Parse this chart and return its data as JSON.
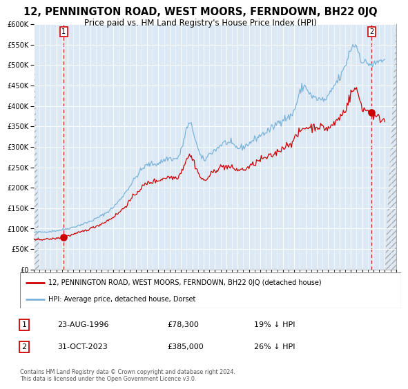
{
  "title": "12, PENNINGTON ROAD, WEST MOORS, FERNDOWN, BH22 0JQ",
  "subtitle": "Price paid vs. HM Land Registry's House Price Index (HPI)",
  "outer_bg_color": "#e8e8e8",
  "plot_bg_color": "#dce9f5",
  "grid_color": "#ffffff",
  "hpi_color": "#7ab3d9",
  "price_color": "#cc0000",
  "sale1_date_num": 1996.64,
  "sale1_price": 78300,
  "sale2_date_num": 2023.83,
  "sale2_price": 385000,
  "ylim": [
    0,
    600000
  ],
  "xlim": [
    1994.0,
    2026.0
  ],
  "yticks": [
    0,
    50000,
    100000,
    150000,
    200000,
    250000,
    300000,
    350000,
    400000,
    450000,
    500000,
    550000,
    600000
  ],
  "legend_label_red": "12, PENNINGTON ROAD, WEST MOORS, FERNDOWN, BH22 0JQ (detached house)",
  "legend_label_blue": "HPI: Average price, detached house, Dorset",
  "annotation1_label": "1",
  "annotation1_date": "23-AUG-1996",
  "annotation1_price": "£78,300",
  "annotation1_hpi": "19% ↓ HPI",
  "annotation2_label": "2",
  "annotation2_date": "31-OCT-2023",
  "annotation2_price": "£385,000",
  "annotation2_hpi": "26% ↓ HPI",
  "footer": "Contains HM Land Registry data © Crown copyright and database right 2024.\nThis data is licensed under the Open Government Licence v3.0.",
  "hpi_anchors_t": [
    1994.0,
    1995.0,
    1996.0,
    1997.0,
    1998.0,
    1999.0,
    2000.0,
    2001.0,
    2002.0,
    2003.0,
    2004.0,
    2005.0,
    2006.0,
    2007.0,
    2007.7,
    2008.5,
    2009.0,
    2009.5,
    2010.0,
    2010.8,
    2011.5,
    2012.0,
    2013.0,
    2014.0,
    2015.0,
    2016.0,
    2017.0,
    2017.8,
    2018.5,
    2019.0,
    2020.0,
    2020.5,
    2021.0,
    2021.5,
    2022.0,
    2022.5,
    2023.0,
    2023.5,
    2024.0,
    2024.5,
    2025.0
  ],
  "hpi_anchors_p": [
    91000,
    92000,
    95000,
    100000,
    108000,
    118000,
    132000,
    152000,
    185000,
    225000,
    255000,
    260000,
    272000,
    290000,
    355000,
    295000,
    268000,
    282000,
    292000,
    310000,
    305000,
    298000,
    308000,
    328000,
    345000,
    368000,
    390000,
    448000,
    425000,
    418000,
    422000,
    448000,
    468000,
    498000,
    540000,
    545000,
    510000,
    505000,
    500000,
    510000,
    505000
  ],
  "red_anchors_t": [
    1994.0,
    1995.0,
    1996.0,
    1997.0,
    1998.0,
    1999.0,
    2000.0,
    2001.0,
    2002.0,
    2003.0,
    2004.0,
    2005.0,
    2006.0,
    2007.0,
    2007.7,
    2008.5,
    2009.0,
    2009.5,
    2010.0,
    2010.8,
    2011.5,
    2012.0,
    2013.0,
    2014.0,
    2015.0,
    2016.0,
    2017.0,
    2017.8,
    2018.5,
    2019.0,
    2020.0,
    2020.5,
    2021.0,
    2021.5,
    2022.0,
    2022.5,
    2023.0,
    2023.5,
    2024.0,
    2024.5,
    2025.0
  ],
  "red_anchors_p": [
    72000,
    74000,
    76000,
    82000,
    90000,
    100000,
    112000,
    128000,
    152000,
    185000,
    210000,
    218000,
    226000,
    238000,
    278000,
    238000,
    218000,
    228000,
    242000,
    252000,
    248000,
    244000,
    250000,
    268000,
    278000,
    298000,
    318000,
    345000,
    348000,
    350000,
    346000,
    356000,
    372000,
    392000,
    428000,
    438000,
    398000,
    388000,
    376000,
    370000,
    365000
  ]
}
